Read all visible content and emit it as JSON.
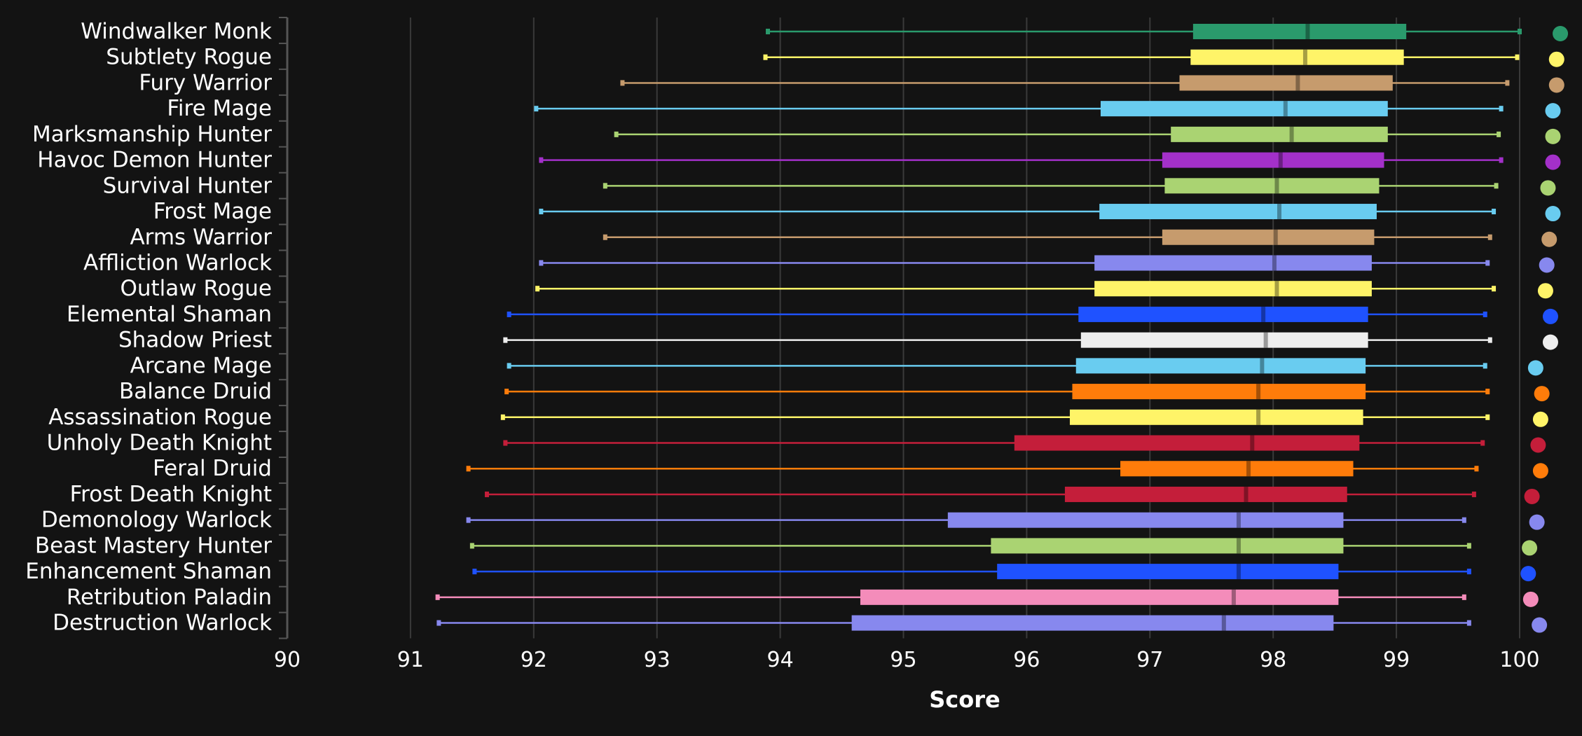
{
  "chart_data": {
    "type": "boxplot",
    "title": "",
    "xlabel": "Score",
    "ylabel": "",
    "xlim": [
      90,
      100
    ],
    "xticks": [
      90,
      91,
      92,
      93,
      94,
      95,
      96,
      97,
      98,
      99,
      100
    ],
    "grid": true,
    "background": "#131313",
    "series": [
      {
        "name": "Windwalker Monk",
        "color": "#2a9a6c",
        "min": 93.9,
        "q1": 97.35,
        "median": 98.28,
        "q3": 99.08,
        "max": 100.0,
        "dot": 100.33
      },
      {
        "name": "Subtlety Rogue",
        "color": "#fff468",
        "min": 93.88,
        "q1": 97.33,
        "median": 98.26,
        "q3": 99.06,
        "max": 99.98,
        "dot": 100.3
      },
      {
        "name": "Fury Warrior",
        "color": "#c69b6d",
        "min": 92.72,
        "q1": 97.24,
        "median": 98.2,
        "q3": 98.97,
        "max": 99.9,
        "dot": 100.3
      },
      {
        "name": "Fire Mage",
        "color": "#69ccf0",
        "min": 92.02,
        "q1": 96.6,
        "median": 98.1,
        "q3": 98.93,
        "max": 99.85,
        "dot": 100.27
      },
      {
        "name": "Marksmanship Hunter",
        "color": "#aad372",
        "min": 92.67,
        "q1": 97.17,
        "median": 98.15,
        "q3": 98.93,
        "max": 99.83,
        "dot": 100.27
      },
      {
        "name": "Havoc Demon Hunter",
        "color": "#a330c9",
        "min": 92.06,
        "q1": 97.1,
        "median": 98.06,
        "q3": 98.9,
        "max": 99.85,
        "dot": 100.27
      },
      {
        "name": "Survival Hunter",
        "color": "#aad372",
        "min": 92.58,
        "q1": 97.12,
        "median": 98.03,
        "q3": 98.86,
        "max": 99.81,
        "dot": 100.23
      },
      {
        "name": "Frost Mage",
        "color": "#69ccf0",
        "min": 92.06,
        "q1": 96.59,
        "median": 98.05,
        "q3": 98.84,
        "max": 99.79,
        "dot": 100.27
      },
      {
        "name": "Arms Warrior",
        "color": "#c69b6d",
        "min": 92.58,
        "q1": 97.1,
        "median": 98.02,
        "q3": 98.82,
        "max": 99.76,
        "dot": 100.24
      },
      {
        "name": "Affliction Warlock",
        "color": "#8788ee",
        "min": 92.06,
        "q1": 96.55,
        "median": 98.01,
        "q3": 98.8,
        "max": 99.74,
        "dot": 100.22
      },
      {
        "name": "Outlaw Rogue",
        "color": "#fff468",
        "min": 92.03,
        "q1": 96.55,
        "median": 98.03,
        "q3": 98.8,
        "max": 99.79,
        "dot": 100.21
      },
      {
        "name": "Elemental Shaman",
        "color": "#1f52ff",
        "min": 91.8,
        "q1": 96.42,
        "median": 97.92,
        "q3": 98.77,
        "max": 99.72,
        "dot": 100.25
      },
      {
        "name": "Shadow Priest",
        "color": "#eeeeee",
        "min": 91.77,
        "q1": 96.44,
        "median": 97.94,
        "q3": 98.77,
        "max": 99.76,
        "dot": 100.25
      },
      {
        "name": "Arcane Mage",
        "color": "#69ccf0",
        "min": 91.8,
        "q1": 96.4,
        "median": 97.91,
        "q3": 98.75,
        "max": 99.72,
        "dot": 100.13
      },
      {
        "name": "Balance Druid",
        "color": "#ff7c0a",
        "min": 91.78,
        "q1": 96.37,
        "median": 97.88,
        "q3": 98.75,
        "max": 99.74,
        "dot": 100.18
      },
      {
        "name": "Assassination Rogue",
        "color": "#fff468",
        "min": 91.75,
        "q1": 96.35,
        "median": 97.88,
        "q3": 98.73,
        "max": 99.74,
        "dot": 100.17
      },
      {
        "name": "Unholy Death Knight",
        "color": "#c41e3a",
        "min": 91.77,
        "q1": 95.9,
        "median": 97.83,
        "q3": 98.7,
        "max": 99.7,
        "dot": 100.15
      },
      {
        "name": "Feral Druid",
        "color": "#ff7c0a",
        "min": 91.47,
        "q1": 96.76,
        "median": 97.8,
        "q3": 98.65,
        "max": 99.65,
        "dot": 100.17
      },
      {
        "name": "Frost Death Knight",
        "color": "#c41e3a",
        "min": 91.62,
        "q1": 96.31,
        "median": 97.78,
        "q3": 98.6,
        "max": 99.63,
        "dot": 100.1
      },
      {
        "name": "Demonology Warlock",
        "color": "#8788ee",
        "min": 91.47,
        "q1": 95.36,
        "median": 97.72,
        "q3": 98.57,
        "max": 99.55,
        "dot": 100.14
      },
      {
        "name": "Beast Mastery Hunter",
        "color": "#aad372",
        "min": 91.5,
        "q1": 95.71,
        "median": 97.72,
        "q3": 98.57,
        "max": 99.59,
        "dot": 100.08
      },
      {
        "name": "Enhancement Shaman",
        "color": "#1f52ff",
        "min": 91.52,
        "q1": 95.76,
        "median": 97.72,
        "q3": 98.53,
        "max": 99.59,
        "dot": 100.07
      },
      {
        "name": "Retribution Paladin",
        "color": "#f48cba",
        "min": 91.22,
        "q1": 94.65,
        "median": 97.68,
        "q3": 98.53,
        "max": 99.55,
        "dot": 100.09
      },
      {
        "name": "Destruction Warlock",
        "color": "#8788ee",
        "min": 91.23,
        "q1": 94.58,
        "median": 97.6,
        "q3": 98.49,
        "max": 99.59,
        "dot": 100.16
      }
    ]
  }
}
